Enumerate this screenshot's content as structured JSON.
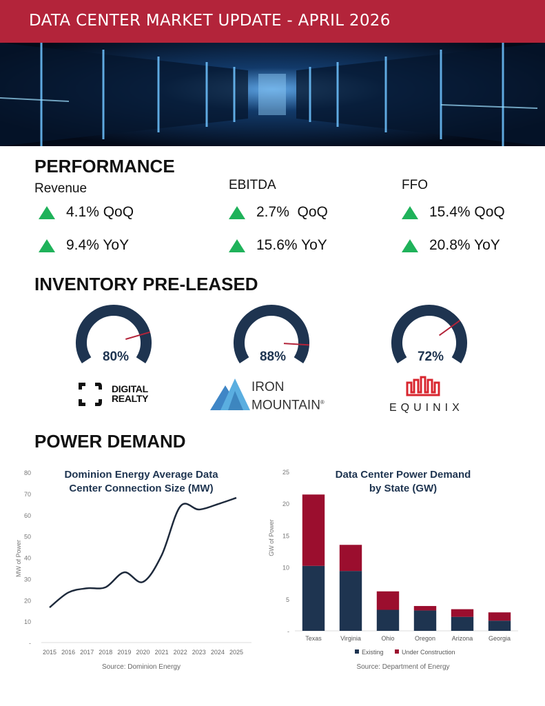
{
  "header": {
    "title": "DATA CENTER MARKET UPDATE - APRIL 2026"
  },
  "colors": {
    "brand_red": "#b3243a",
    "navy": "#1e3450",
    "up_green": "#1fb25a",
    "needle": "#b3243a"
  },
  "performance": {
    "heading": "PERFORMANCE",
    "groups": [
      {
        "label": "Revenue",
        "qoq": "4.1% QoQ",
        "yoy": "9.4% YoY",
        "icon": "triangle-up-icon"
      },
      {
        "label": "EBITDA",
        "qoq": "2.7%  QoQ",
        "yoy": "15.6% YoY",
        "icon": "triangle-up-icon"
      },
      {
        "label": "FFO",
        "qoq": "15.4% QoQ",
        "yoy": "20.8% YoY",
        "icon": "triangle-up-icon"
      }
    ]
  },
  "inventory": {
    "heading": "INVENTORY PRE-LEASED",
    "gauges": [
      {
        "value": 80,
        "label": "80%",
        "company": "Digital Realty",
        "logo_text": [
          "DIGITAL",
          "REALTY"
        ]
      },
      {
        "value": 88,
        "label": "88%",
        "company": "Iron Mountain",
        "logo_text": [
          "IRON",
          "MOUNTAIN®"
        ]
      },
      {
        "value": 72,
        "label": "72%",
        "company": "Equinix",
        "logo_text": [
          "EQUINIX"
        ]
      }
    ]
  },
  "power": {
    "heading": "POWER DEMAND"
  },
  "chart_data": [
    {
      "type": "line",
      "title": "Dominion Energy Average Data Center Connection Size (MW)",
      "title_lines": [
        "Dominion Energy Average Data",
        "Center Connection Size (MW)"
      ],
      "ylabel": "MW of Power",
      "source": "Source: Dominion Energy",
      "x": [
        2015,
        2016,
        2017,
        2018,
        2019,
        2020,
        2021,
        2022,
        2023,
        2024,
        2025
      ],
      "values": [
        16.5,
        23.5,
        25.5,
        26,
        33,
        28.5,
        41,
        64,
        62.5,
        65,
        68
      ],
      "ylim": [
        0,
        80
      ],
      "yticks": [
        "-",
        "10",
        "20",
        "30",
        "40",
        "50",
        "60",
        "70",
        "80"
      ],
      "grid": false
    },
    {
      "type": "bar",
      "stacked": true,
      "title": "Data Center Power Demand by State (GW)",
      "title_lines": [
        "Data Center Power Demand",
        "by State (GW)"
      ],
      "ylabel": "GW of Power",
      "source": "Source: Department of Energy",
      "categories": [
        "Texas",
        "Virginia",
        "Ohio",
        "Oregon",
        "Arizona",
        "Georgia"
      ],
      "series": [
        {
          "name": "Existing",
          "color": "#1e3450",
          "values": [
            10.2,
            9.4,
            3.3,
            3.2,
            2.2,
            1.6
          ]
        },
        {
          "name": "Under Construction",
          "color": "#9b0e2e",
          "values": [
            11.2,
            4.1,
            2.9,
            0.7,
            1.2,
            1.3
          ]
        }
      ],
      "ylim": [
        0,
        25
      ],
      "yticks": [
        "-",
        "5",
        "10",
        "15",
        "20",
        "25"
      ],
      "legend": "bottom",
      "grid": false
    }
  ]
}
